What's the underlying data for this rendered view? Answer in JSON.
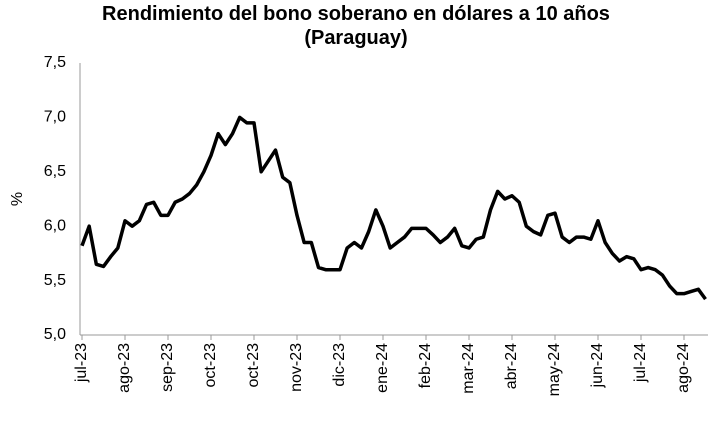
{
  "chart_data": {
    "type": "line",
    "title": "Rendimiento del bono soberano en dólares a 10 años (Paraguay)",
    "y_label": "%",
    "color": "#000000",
    "categories": [
      "jul-23",
      null,
      null,
      null,
      null,
      null,
      "ago-23",
      null,
      null,
      null,
      null,
      null,
      "sep-23",
      null,
      null,
      null,
      null,
      null,
      "oct-23",
      null,
      null,
      null,
      null,
      null,
      "oct-23",
      null,
      null,
      null,
      null,
      null,
      "nov-23",
      null,
      null,
      null,
      null,
      null,
      "dic-23",
      null,
      null,
      null,
      null,
      null,
      "ene-24",
      null,
      null,
      null,
      null,
      null,
      "feb-24",
      null,
      null,
      null,
      null,
      null,
      "mar-24",
      null,
      null,
      null,
      null,
      null,
      "abr-24",
      null,
      null,
      null,
      null,
      null,
      "may-24",
      null,
      null,
      null,
      null,
      null,
      "jun-24",
      null,
      null,
      null,
      null,
      null,
      "jul-24",
      null,
      null,
      null,
      null,
      null,
      "ago-24",
      null,
      null,
      null
    ],
    "values": [
      5.82,
      6.0,
      5.65,
      5.63,
      5.72,
      5.8,
      6.05,
      6.0,
      6.05,
      6.2,
      6.22,
      6.1,
      6.1,
      6.22,
      6.25,
      6.3,
      6.38,
      6.5,
      6.65,
      6.85,
      6.75,
      6.85,
      7.0,
      6.95,
      6.95,
      6.5,
      6.6,
      6.7,
      6.45,
      6.4,
      6.1,
      5.85,
      5.85,
      5.62,
      5.6,
      5.6,
      5.6,
      5.8,
      5.85,
      5.8,
      5.95,
      6.15,
      6.0,
      5.8,
      5.85,
      5.9,
      5.98,
      5.98,
      5.98,
      5.92,
      5.85,
      5.9,
      5.98,
      5.82,
      5.8,
      5.88,
      5.9,
      6.15,
      6.32,
      6.25,
      6.28,
      6.22,
      6.0,
      5.95,
      5.92,
      6.1,
      6.12,
      5.9,
      5.85,
      5.9,
      5.9,
      5.88,
      6.05,
      5.85,
      5.75,
      5.68,
      5.72,
      5.7,
      5.6,
      5.62,
      5.6,
      5.55,
      5.45,
      5.38,
      5.38,
      5.4,
      5.42,
      5.33
    ],
    "ylim": [
      5.0,
      7.5
    ],
    "yticks": [
      {
        "value": 5.0,
        "label": "5,0"
      },
      {
        "value": 5.5,
        "label": "5,5"
      },
      {
        "value": 6.0,
        "label": "6,0"
      },
      {
        "value": 6.5,
        "label": "6,5"
      },
      {
        "value": 7.0,
        "label": "7,0"
      },
      {
        "value": 7.5,
        "label": "7,5"
      }
    ],
    "grid": false
  }
}
